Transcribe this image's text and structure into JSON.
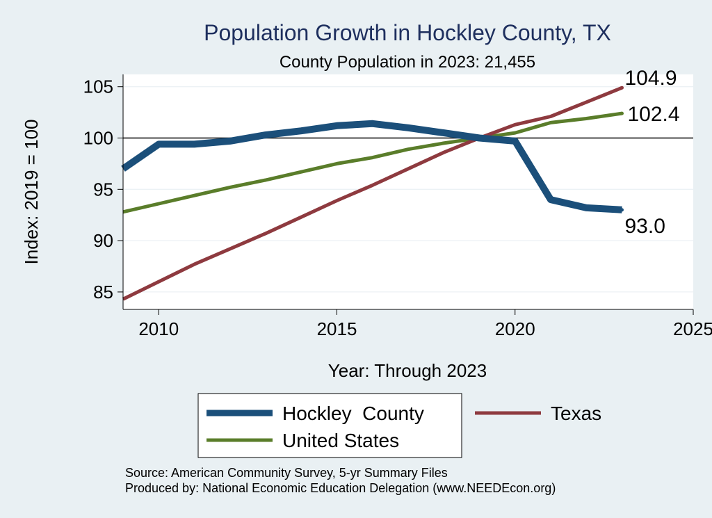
{
  "chart_data": {
    "type": "line",
    "title": "Population Growth in Hockley County, TX",
    "subtitle": "County Population in 2023: 21,455",
    "xlabel": "Year: Through 2023",
    "ylabel": "Index: 2019 = 100",
    "xlim": [
      2009,
      2025
    ],
    "ylim": [
      83.3,
      106.2
    ],
    "xticks": [
      2010,
      2015,
      2020,
      2025
    ],
    "yticks": [
      85,
      90,
      95,
      100,
      105
    ],
    "reference_line": 100,
    "x": [
      2009,
      2010,
      2011,
      2012,
      2013,
      2014,
      2015,
      2016,
      2017,
      2018,
      2019,
      2020,
      2021,
      2022,
      2023
    ],
    "series": [
      {
        "name": "Hockley  County",
        "color": "#1b4f7a",
        "values": [
          97.0,
          99.4,
          99.4,
          99.7,
          100.3,
          100.7,
          101.2,
          101.4,
          101.0,
          100.5,
          100.0,
          99.7,
          94.0,
          93.2,
          93.0
        ],
        "end_label": "93.0"
      },
      {
        "name": "Texas",
        "color": "#8e3a3f",
        "values": [
          84.3,
          86.0,
          87.7,
          89.2,
          90.7,
          92.3,
          93.9,
          95.4,
          97.0,
          98.6,
          100.0,
          101.3,
          102.1,
          103.5,
          104.9
        ],
        "end_label": "104.9"
      },
      {
        "name": "United States",
        "color": "#5a7d2a",
        "values": [
          92.8,
          93.6,
          94.4,
          95.2,
          95.9,
          96.7,
          97.5,
          98.1,
          98.9,
          99.5,
          100.0,
          100.5,
          101.5,
          101.9,
          102.4
        ],
        "end_label": "102.4"
      }
    ],
    "legend": {
      "placement": "bottom",
      "entries": [
        "Hockley  County",
        "Texas",
        "United States"
      ]
    }
  },
  "source": {
    "line1": "Source: American Community Survey, 5-yr Summary Files",
    "line2": "Produced by: National Economic Education Delegation (www.NEEDEcon.org)"
  },
  "colors": {
    "background": "#e9f0f3",
    "plot_background": "#ffffff",
    "title": "#1e2f5e",
    "grid": "#e6eef2"
  }
}
